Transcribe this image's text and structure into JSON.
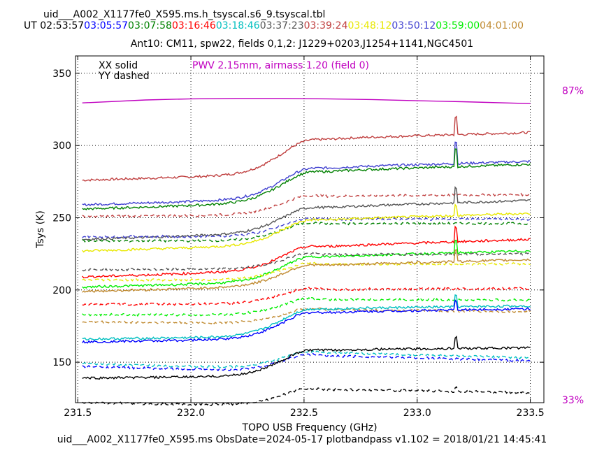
{
  "header": {
    "filename": "uid___A002_X1177fe0_X595.ms.h_tsyscal.s6_9.tsyscal.tbl",
    "ut_label": "UT",
    "timestamps": [
      {
        "text": "02:53:57",
        "color": "#000000"
      },
      {
        "text": "03:05:57",
        "color": "#0000ff"
      },
      {
        "text": "03:07:58",
        "color": "#008000"
      },
      {
        "text": "03:16:46",
        "color": "#ff0000"
      },
      {
        "text": "03:18:46",
        "color": "#00bfbf"
      },
      {
        "text": "03:37:23",
        "color": "#555555"
      },
      {
        "text": "03:39:24",
        "color": "#c04040"
      },
      {
        "text": "03:48:12",
        "color": "#e8e800"
      },
      {
        "text": "03:50:12",
        "color": "#4040d0"
      },
      {
        "text": "03:59:00",
        "color": "#00ee00"
      },
      {
        "text": "04:01:00",
        "color": "#c08a30"
      }
    ],
    "subtitle": "Ant10: CM11,  spw22,  fields 0,1,2: J1229+0203,J1254+1141,NGC4501"
  },
  "footer": "uid___A002_X1177fe0_X595.ms  ObsDate=2024-05-17   plotbandpass v1.102 = 2018/01/21 14:45:41",
  "chart_data": {
    "type": "line",
    "xlabel": "TOPO USB Frequency (GHz)",
    "ylabel": "Tsys (K)",
    "xlim": [
      231.49,
      233.56
    ],
    "ylim": [
      122,
      362
    ],
    "xticks": [
      231.5,
      232.0,
      232.5,
      233.0,
      233.5
    ],
    "xtick_labels": [
      "231.5",
      "232.0",
      "232.5",
      "233.0",
      "233.5"
    ],
    "yticks": [
      150,
      200,
      250,
      300,
      350
    ],
    "ytick_labels": [
      "150",
      "200",
      "250",
      "300",
      "350"
    ],
    "grid": true,
    "legend": {
      "solid": "XX solid",
      "dashed": "YY dashed",
      "placement": "top-left"
    },
    "annotation": {
      "text": "PWV 2.15mm, airmass 1.20 (field 0)",
      "color": "#c000c0"
    },
    "right_labels": [
      {
        "text": "87%",
        "y": 338
      },
      {
        "text": "33%",
        "y": 124
      }
    ],
    "right_label_color": "#c000c0",
    "spike_x": 233.17,
    "transmission": {
      "color": "#c000c0",
      "x": [
        231.52,
        231.8,
        232.0,
        232.2,
        232.4,
        232.6,
        232.8,
        233.0,
        233.2,
        233.5
      ],
      "y": [
        329.5,
        331.5,
        332.3,
        332.6,
        332.6,
        332.3,
        331.8,
        331.0,
        330.3,
        329.0
      ]
    },
    "series": [
      {
        "color": "#c04040",
        "dash": false,
        "start": 276,
        "shift": 24,
        "end": 309,
        "spike": 12
      },
      {
        "color": "#4040d0",
        "dash": false,
        "start": 259,
        "shift": 21,
        "end": 289,
        "spike": 15
      },
      {
        "color": "#008000",
        "dash": false,
        "start": 256,
        "shift": 21,
        "end": 287,
        "spike": 12
      },
      {
        "color": "#c04040",
        "dash": true,
        "start": 251,
        "shift": 13,
        "end": 266,
        "spike": 0
      },
      {
        "color": "#555555",
        "dash": false,
        "start": 235,
        "shift": 17,
        "end": 262,
        "spike": 10
      },
      {
        "color": "#4040d0",
        "dash": true,
        "start": 237,
        "shift": 12,
        "end": 249,
        "spike": 0
      },
      {
        "color": "#008000",
        "dash": true,
        "start": 234,
        "shift": 12,
        "end": 246,
        "spike": 0
      },
      {
        "color": "#e8e800",
        "dash": false,
        "start": 227,
        "shift": 17,
        "end": 253,
        "spike": 7
      },
      {
        "color": "#ff0000",
        "dash": false,
        "start": 209,
        "shift": 16,
        "end": 235,
        "spike": 10
      },
      {
        "color": "#00ee00",
        "dash": false,
        "start": 202,
        "shift": 17,
        "end": 227,
        "spike": 8
      },
      {
        "color": "#555555",
        "dash": true,
        "start": 214,
        "shift": 10,
        "end": 225,
        "spike": 0
      },
      {
        "color": "#e8e800",
        "dash": true,
        "start": 207,
        "shift": 11,
        "end": 218,
        "spike": 0
      },
      {
        "color": "#c08a30",
        "dash": false,
        "start": 199,
        "shift": 14,
        "end": 221,
        "spike": 8
      },
      {
        "color": "#ff0000",
        "dash": true,
        "start": 190,
        "shift": 10,
        "end": 201,
        "spike": 0
      },
      {
        "color": "#00ee00",
        "dash": true,
        "start": 183,
        "shift": 11,
        "end": 193,
        "spike": 0
      },
      {
        "color": "#c08a30",
        "dash": true,
        "start": 178,
        "shift": 10,
        "end": 185,
        "spike": 0
      },
      {
        "color": "#00bfbf",
        "dash": false,
        "start": 166,
        "shift": 19,
        "end": 189,
        "spike": 8
      },
      {
        "color": "#0000ff",
        "dash": false,
        "start": 164,
        "shift": 18,
        "end": 187,
        "spike": 6
      },
      {
        "color": "#00bfbf",
        "dash": true,
        "start": 149,
        "shift": 12,
        "end": 153,
        "spike": 0
      },
      {
        "color": "#0000ff",
        "dash": true,
        "start": 147,
        "shift": 12,
        "end": 151,
        "spike": 0
      },
      {
        "color": "#000000",
        "dash": false,
        "start": 139,
        "shift": 18,
        "end": 160,
        "spike": 8
      },
      {
        "color": "#000000",
        "dash": true,
        "start": 122,
        "shift": 12,
        "end": 129,
        "spike": 3
      }
    ]
  }
}
